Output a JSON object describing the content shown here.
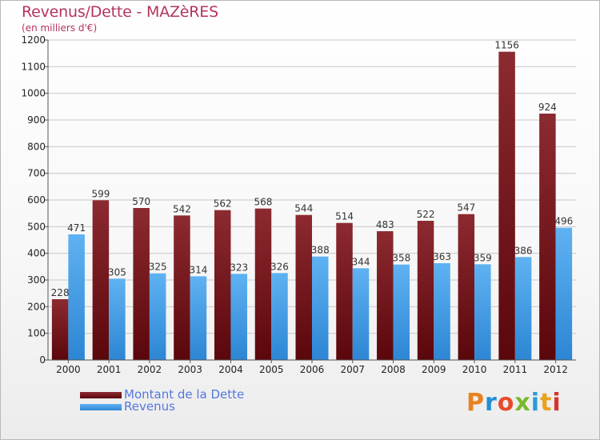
{
  "title": "Revenus/Dette - MAZèRES",
  "subtitle": "(en milliers d'€)",
  "logo_text": "Proxiti",
  "colors": {
    "dette": "#6e0c12",
    "dette_light": "#8c2a30",
    "revenus": "#3f97e0",
    "revenus_light": "#5aaef0",
    "title": "#b5345c",
    "legend_text": "#5577dd"
  },
  "legend": [
    {
      "label": "Montant de la Dette",
      "series": "dette"
    },
    {
      "label": "Revenus",
      "series": "revenus"
    }
  ],
  "chart_data": {
    "type": "bar",
    "title": "Revenus/Dette - MAZèRES",
    "subtitle": "(en milliers d'€)",
    "categories": [
      "2000",
      "2001",
      "2002",
      "2003",
      "2004",
      "2005",
      "2006",
      "2007",
      "2008",
      "2009",
      "2010",
      "2011",
      "2012"
    ],
    "series": [
      {
        "name": "Montant de la Dette",
        "values": [
          228,
          599,
          570,
          542,
          562,
          568,
          544,
          514,
          483,
          522,
          547,
          1156,
          924
        ]
      },
      {
        "name": "Revenus",
        "values": [
          471,
          305,
          325,
          314,
          323,
          326,
          388,
          344,
          358,
          363,
          359,
          386,
          496
        ]
      }
    ],
    "ylim": [
      0,
      1200
    ],
    "yticks": [
      0,
      100,
      200,
      300,
      400,
      500,
      600,
      700,
      800,
      900,
      1000,
      1100,
      1200
    ],
    "grid": true,
    "legend_position": "bottom-left"
  }
}
